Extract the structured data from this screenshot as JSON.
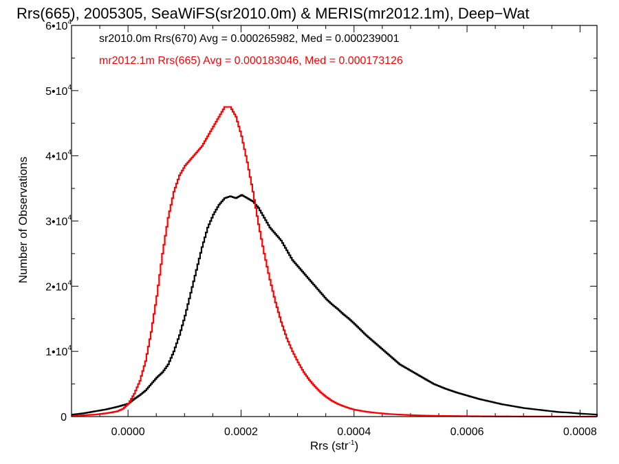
{
  "chart_data": {
    "type": "line",
    "title": "Rrs(665), 2005305, SeaWiFS(sr2010.0m) & MERIS(mr2012.1m), Deep−Wat",
    "xlabel": "Rrs (str",
    "xlabel_sup": "-1",
    "xlabel_end": ")",
    "ylabel": "Number of Observations",
    "xlim": [
      -0.0001,
      0.00083
    ],
    "ylim": [
      0,
      60000
    ],
    "xticks": [
      {
        "value": 0.0,
        "label": "0.0000"
      },
      {
        "value": 0.0002,
        "label": "0.0002"
      },
      {
        "value": 0.0004,
        "label": "0.0004"
      },
      {
        "value": 0.0006,
        "label": "0.0006"
      },
      {
        "value": 0.0008,
        "label": "0.0008"
      }
    ],
    "yticks": [
      {
        "value": 0,
        "label": "0",
        "mult": "",
        "exp": ""
      },
      {
        "value": 10000,
        "label": "1•10",
        "exp": "4"
      },
      {
        "value": 20000,
        "label": "2•10",
        "exp": "4"
      },
      {
        "value": 30000,
        "label": "3•10",
        "exp": "4"
      },
      {
        "value": 40000,
        "label": "4•10",
        "exp": "4"
      },
      {
        "value": 50000,
        "label": "5•10",
        "exp": "4"
      },
      {
        "value": 60000,
        "label": "6•10",
        "exp": "4"
      }
    ],
    "legend_placement": "top-left",
    "series": [
      {
        "name": "sr2010.0m Rrs(670) Avg = 0.000265982, Med = 0.000239001",
        "color": "#000000",
        "x": [
          -0.0001,
          -8e-05,
          -6e-05,
          -4e-05,
          -2e-05,
          0.0,
          1e-05,
          2e-05,
          3e-05,
          4e-05,
          5e-05,
          6e-05,
          7e-05,
          8e-05,
          9e-05,
          0.0001,
          0.00011,
          0.00012,
          0.00013,
          0.00014,
          0.00015,
          0.00016,
          0.00017,
          0.00018,
          0.00019,
          0.0002,
          0.00021,
          0.00022,
          0.00023,
          0.00024,
          0.00025,
          0.00026,
          0.00027,
          0.00028,
          0.00029,
          0.0003,
          0.00031,
          0.00032,
          0.00033,
          0.00034,
          0.00035,
          0.00036,
          0.00037,
          0.00038,
          0.00039,
          0.0004,
          0.00042,
          0.00044,
          0.00046,
          0.00048,
          0.0005,
          0.00052,
          0.00054,
          0.00056,
          0.00058,
          0.0006,
          0.00062,
          0.00064,
          0.00066,
          0.00068,
          0.0007,
          0.00072,
          0.00074,
          0.00076,
          0.00078,
          0.0008,
          0.00083
        ],
        "y": [
          300,
          500,
          800,
          1100,
          1500,
          2000,
          2700,
          3300,
          4000,
          5000,
          6000,
          6800,
          8000,
          10000,
          12500,
          15500,
          19000,
          22500,
          26000,
          29000,
          31000,
          32500,
          33500,
          33800,
          33500,
          34000,
          33500,
          33000,
          32000,
          30500,
          29000,
          28000,
          27000,
          25500,
          24000,
          23000,
          22000,
          21000,
          20000,
          19000,
          18000,
          17200,
          16500,
          15700,
          15000,
          14200,
          12500,
          11000,
          9500,
          8000,
          7000,
          6000,
          5000,
          4300,
          3700,
          3200,
          2700,
          2300,
          1900,
          1600,
          1300,
          1100,
          900,
          700,
          600,
          450,
          300
        ]
      },
      {
        "name": "mr2012.1m Rrs(665) Avg = 0.000183046, Med = 0.000173126",
        "color": "#ff0000",
        "x": [
          -0.0001,
          -8e-05,
          -6e-05,
          -4e-05,
          -2e-05,
          -1e-05,
          0.0,
          1e-05,
          2e-05,
          3e-05,
          4e-05,
          5e-05,
          6e-05,
          7e-05,
          8e-05,
          9e-05,
          0.0001,
          0.00011,
          0.00012,
          0.00013,
          0.00014,
          0.00015,
          0.00016,
          0.00017,
          0.00018,
          0.00019,
          0.0002,
          0.00021,
          0.00022,
          0.00023,
          0.00024,
          0.00025,
          0.00026,
          0.00027,
          0.00028,
          0.00029,
          0.0003,
          0.00031,
          0.00032,
          0.00033,
          0.00034,
          0.00035,
          0.00036,
          0.00037,
          0.00038,
          0.00039,
          0.0004,
          0.00042,
          0.00044,
          0.00046,
          0.00048,
          0.0005,
          0.00052,
          0.00055,
          0.0006,
          0.00065,
          0.0007,
          0.00083
        ],
        "y": [
          100,
          200,
          300,
          500,
          800,
          1200,
          2000,
          3500,
          5500,
          8500,
          13000,
          18500,
          25000,
          30500,
          34500,
          37000,
          38500,
          39500,
          40500,
          41500,
          43000,
          44500,
          46000,
          47500,
          47500,
          46000,
          43000,
          39000,
          34500,
          29500,
          25000,
          21000,
          17500,
          14500,
          12000,
          10000,
          8300,
          6800,
          5600,
          4600,
          3700,
          3000,
          2400,
          1950,
          1600,
          1300,
          1050,
          750,
          550,
          400,
          300,
          220,
          160,
          110,
          60,
          30,
          15,
          0
        ]
      }
    ]
  }
}
